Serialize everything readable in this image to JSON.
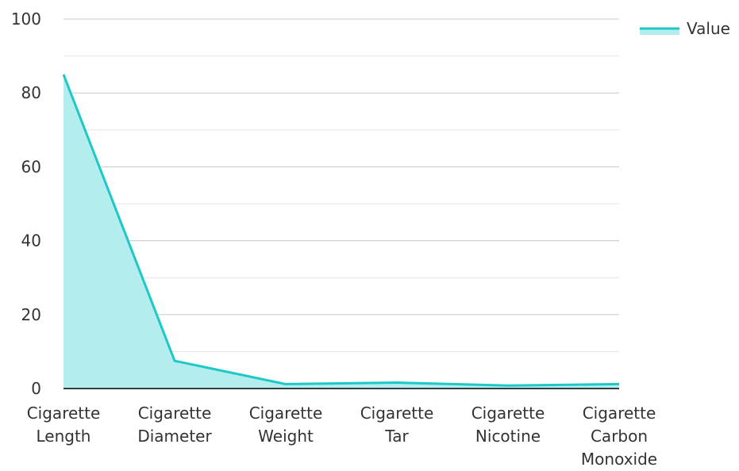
{
  "chart_data": {
    "type": "area",
    "categories": [
      [
        "Cigarette",
        "Length"
      ],
      [
        "Cigarette",
        "Diameter"
      ],
      [
        "Cigarette",
        "Weight"
      ],
      [
        "Cigarette",
        "Tar"
      ],
      [
        "Cigarette",
        "Nicotine"
      ],
      [
        "Cigarette",
        "Carbon",
        "Monoxide"
      ]
    ],
    "series": [
      {
        "name": "Value",
        "values": [
          85,
          7.5,
          1.2,
          1.6,
          0.8,
          1.2
        ]
      }
    ],
    "ylim": [
      0,
      100
    ],
    "yticks": [
      0,
      20,
      40,
      60,
      80,
      100
    ],
    "grid": true,
    "legend_position": "top-right",
    "colors": {
      "line": "#1ec8c8",
      "fill": "#b3eded",
      "grid_major": "#c8c8c8",
      "grid_minor": "#e6e6e6",
      "axis": "#000000",
      "text": "#333333"
    }
  }
}
